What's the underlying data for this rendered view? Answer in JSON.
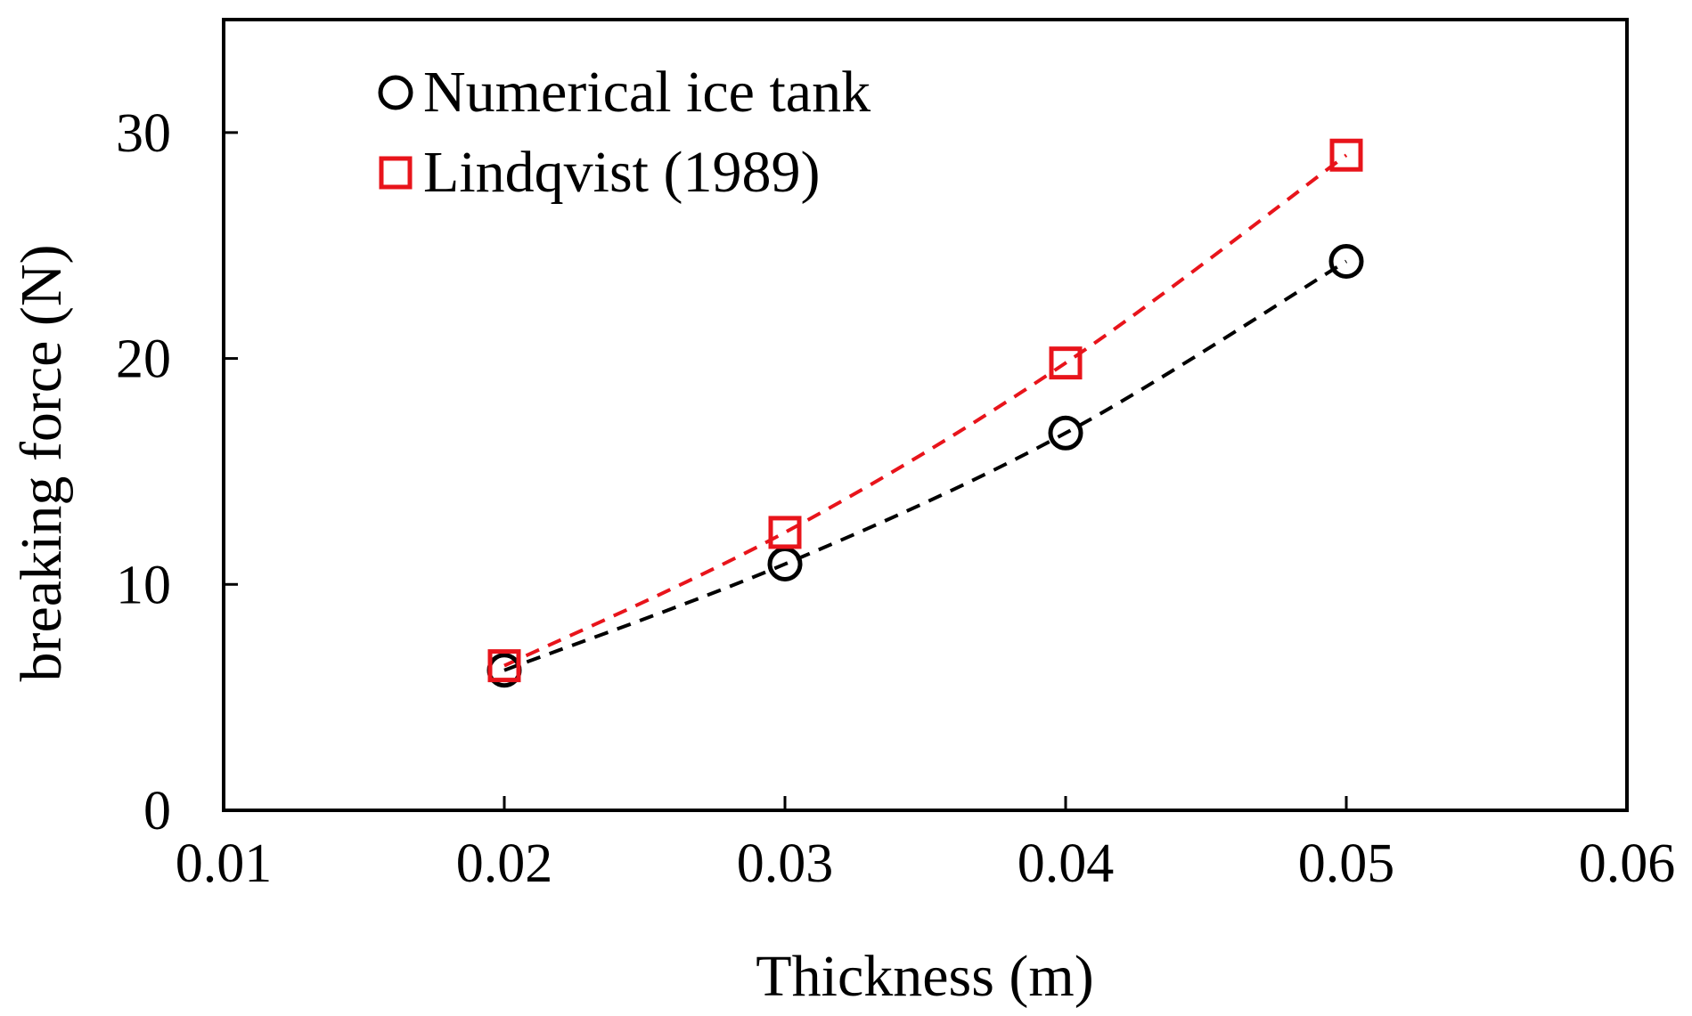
{
  "chart_data": {
    "type": "scatter",
    "title": "",
    "xlabel": "Thickness (m)",
    "ylabel": "breaking force  (N)",
    "xlim": [
      0.01,
      0.06
    ],
    "ylim": [
      0,
      35
    ],
    "xticks": [
      0.01,
      0.02,
      0.03,
      0.04,
      0.05,
      0.06
    ],
    "xtick_labels": [
      "0.01",
      "0.02",
      "0.03",
      "0.04",
      "0.05",
      "0.06"
    ],
    "yticks": [
      0,
      10,
      20,
      30
    ],
    "ytick_labels": [
      "0",
      "10",
      "20",
      "30"
    ],
    "grid": false,
    "legend_position": "top-left",
    "series": [
      {
        "name": "Numerical ice tank",
        "marker": "circle",
        "color": "#000000",
        "x": [
          0.02,
          0.03,
          0.04,
          0.05
        ],
        "y": [
          6.2,
          10.9,
          16.7,
          24.3
        ],
        "trend": "dashed"
      },
      {
        "name": "Lindqvist (1989)",
        "marker": "square",
        "color": "#e8141b",
        "x": [
          0.02,
          0.03,
          0.04,
          0.05
        ],
        "y": [
          6.4,
          12.3,
          19.8,
          29.0
        ],
        "trend": "dashed"
      }
    ]
  }
}
